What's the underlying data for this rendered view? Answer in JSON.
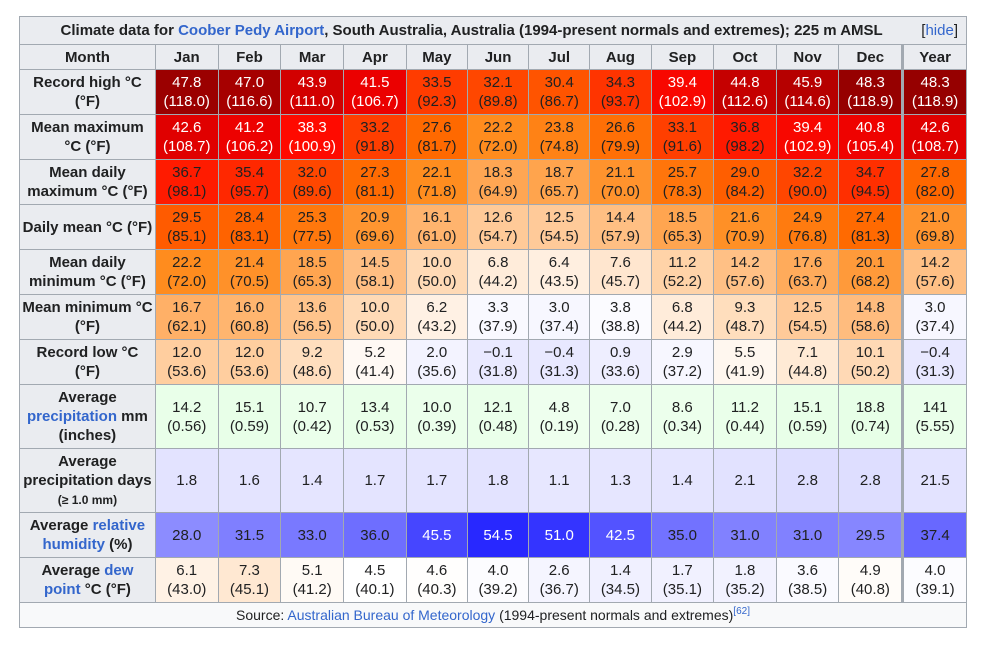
{
  "title": {
    "prefix": "Climate data for ",
    "link": "Coober Pedy Airport",
    "suffix": ", South Australia, Australia (1994-present normals and extremes); 225 m AMSL",
    "hide_open": "[",
    "hide_label": "hide",
    "hide_close": "]"
  },
  "header": {
    "month_label": "Month",
    "months": [
      "Jan",
      "Feb",
      "Mar",
      "Apr",
      "May",
      "Jun",
      "Jul",
      "Aug",
      "Sep",
      "Oct",
      "Nov",
      "Dec",
      "Year"
    ]
  },
  "rows": [
    {
      "kind": "temp",
      "label": [
        {
          "t": "Record high °C (°F)"
        }
      ],
      "main": [
        "47.8",
        "47.0",
        "43.9",
        "41.5",
        "33.5",
        "32.1",
        "30.4",
        "34.3",
        "39.4",
        "44.8",
        "45.9",
        "48.3",
        "48.3"
      ],
      "sub": [
        "(118.0)",
        "(116.6)",
        "(111.0)",
        "(106.7)",
        "(92.3)",
        "(89.8)",
        "(86.7)",
        "(93.7)",
        "(102.9)",
        "(112.6)",
        "(114.6)",
        "(118.9)",
        "(118.9)"
      ]
    },
    {
      "kind": "temp",
      "label": [
        {
          "t": "Mean maximum °C (°F)"
        }
      ],
      "main": [
        "42.6",
        "41.2",
        "38.3",
        "33.2",
        "27.6",
        "22.2",
        "23.8",
        "26.6",
        "33.1",
        "36.8",
        "39.4",
        "40.8",
        "42.6"
      ],
      "sub": [
        "(108.7)",
        "(106.2)",
        "(100.9)",
        "(91.8)",
        "(81.7)",
        "(72.0)",
        "(74.8)",
        "(79.9)",
        "(91.6)",
        "(98.2)",
        "(102.9)",
        "(105.4)",
        "(108.7)"
      ]
    },
    {
      "kind": "temp",
      "label": [
        {
          "t": "Mean daily maximum °C (°F)"
        }
      ],
      "main": [
        "36.7",
        "35.4",
        "32.0",
        "27.3",
        "22.1",
        "18.3",
        "18.7",
        "21.1",
        "25.7",
        "29.0",
        "32.2",
        "34.7",
        "27.8"
      ],
      "sub": [
        "(98.1)",
        "(95.7)",
        "(89.6)",
        "(81.1)",
        "(71.8)",
        "(64.9)",
        "(65.7)",
        "(70.0)",
        "(78.3)",
        "(84.2)",
        "(90.0)",
        "(94.5)",
        "(82.0)"
      ]
    },
    {
      "kind": "temp",
      "label": [
        {
          "t": "Daily mean °C (°F)"
        }
      ],
      "main": [
        "29.5",
        "28.4",
        "25.3",
        "20.9",
        "16.1",
        "12.6",
        "12.5",
        "14.4",
        "18.5",
        "21.6",
        "24.9",
        "27.4",
        "21.0"
      ],
      "sub": [
        "(85.1)",
        "(83.1)",
        "(77.5)",
        "(69.6)",
        "(61.0)",
        "(54.7)",
        "(54.5)",
        "(57.9)",
        "(65.3)",
        "(70.9)",
        "(76.8)",
        "(81.3)",
        "(69.8)"
      ]
    },
    {
      "kind": "temp",
      "label": [
        {
          "t": "Mean daily minimum °C (°F)"
        }
      ],
      "main": [
        "22.2",
        "21.4",
        "18.5",
        "14.5",
        "10.0",
        "6.8",
        "6.4",
        "7.6",
        "11.2",
        "14.2",
        "17.6",
        "20.1",
        "14.2"
      ],
      "sub": [
        "(72.0)",
        "(70.5)",
        "(65.3)",
        "(58.1)",
        "(50.0)",
        "(44.2)",
        "(43.5)",
        "(45.7)",
        "(52.2)",
        "(57.6)",
        "(63.7)",
        "(68.2)",
        "(57.6)"
      ]
    },
    {
      "kind": "temp",
      "label": [
        {
          "t": "Mean minimum °C (°F)"
        }
      ],
      "main": [
        "16.7",
        "16.0",
        "13.6",
        "10.0",
        "6.2",
        "3.3",
        "3.0",
        "3.8",
        "6.8",
        "9.3",
        "12.5",
        "14.8",
        "3.0"
      ],
      "sub": [
        "(62.1)",
        "(60.8)",
        "(56.5)",
        "(50.0)",
        "(43.2)",
        "(37.9)",
        "(37.4)",
        "(38.8)",
        "(44.2)",
        "(48.7)",
        "(54.5)",
        "(58.6)",
        "(37.4)"
      ]
    },
    {
      "kind": "temp",
      "label": [
        {
          "t": "Record low °C (°F)"
        }
      ],
      "main": [
        "12.0",
        "12.0",
        "9.2",
        "5.2",
        "2.0",
        "−0.1",
        "−0.4",
        "0.9",
        "2.9",
        "5.5",
        "7.1",
        "10.1",
        "−0.4"
      ],
      "sub": [
        "(53.6)",
        "(53.6)",
        "(48.6)",
        "(41.4)",
        "(35.6)",
        "(31.8)",
        "(31.3)",
        "(33.6)",
        "(37.2)",
        "(41.9)",
        "(44.8)",
        "(50.2)",
        "(31.3)"
      ]
    },
    {
      "kind": "precip",
      "label": [
        {
          "t": "Average "
        },
        {
          "t": "precipitation",
          "link": true
        },
        {
          "t": " mm (inches)"
        }
      ],
      "main": [
        "14.2",
        "15.1",
        "10.7",
        "13.4",
        "10.0",
        "12.1",
        "4.8",
        "7.0",
        "8.6",
        "11.2",
        "15.1",
        "18.8",
        "141"
      ],
      "sub": [
        "(0.56)",
        "(0.59)",
        "(0.42)",
        "(0.53)",
        "(0.39)",
        "(0.48)",
        "(0.19)",
        "(0.28)",
        "(0.34)",
        "(0.44)",
        "(0.59)",
        "(0.74)",
        "(5.55)"
      ]
    },
    {
      "kind": "days",
      "label": [
        {
          "t": "Average precipitation days "
        },
        {
          "t": "(≥ 1.0 mm)",
          "small": true
        }
      ],
      "main": [
        "1.8",
        "1.6",
        "1.4",
        "1.7",
        "1.7",
        "1.8",
        "1.1",
        "1.3",
        "1.4",
        "2.1",
        "2.8",
        "2.8",
        "21.5"
      ]
    },
    {
      "kind": "humid",
      "label": [
        {
          "t": "Average "
        },
        {
          "t": "relative humidity",
          "link": true
        },
        {
          "t": " (%)"
        }
      ],
      "main": [
        "28.0",
        "31.5",
        "33.0",
        "36.0",
        "45.5",
        "54.5",
        "51.0",
        "42.5",
        "35.0",
        "31.0",
        "31.0",
        "29.5",
        "37.4"
      ]
    },
    {
      "kind": "temp",
      "label": [
        {
          "t": "Average "
        },
        {
          "t": "dew point",
          "link": true
        },
        {
          "t": " °C (°F)"
        }
      ],
      "main": [
        "6.1",
        "7.3",
        "5.1",
        "4.5",
        "4.6",
        "4.0",
        "2.6",
        "1.4",
        "1.7",
        "1.8",
        "3.6",
        "4.9",
        "4.0"
      ],
      "sub": [
        "(43.0)",
        "(45.1)",
        "(41.2)",
        "(40.1)",
        "(40.3)",
        "(39.2)",
        "(36.7)",
        "(34.5)",
        "(35.1)",
        "(35.2)",
        "(38.5)",
        "(40.8)",
        "(39.1)"
      ]
    }
  ],
  "source": {
    "prefix": "Source: ",
    "link": "Australian Bureau of Meteorology",
    "suffix": " (1994-present normals and extremes)",
    "ref": "[62]"
  }
}
